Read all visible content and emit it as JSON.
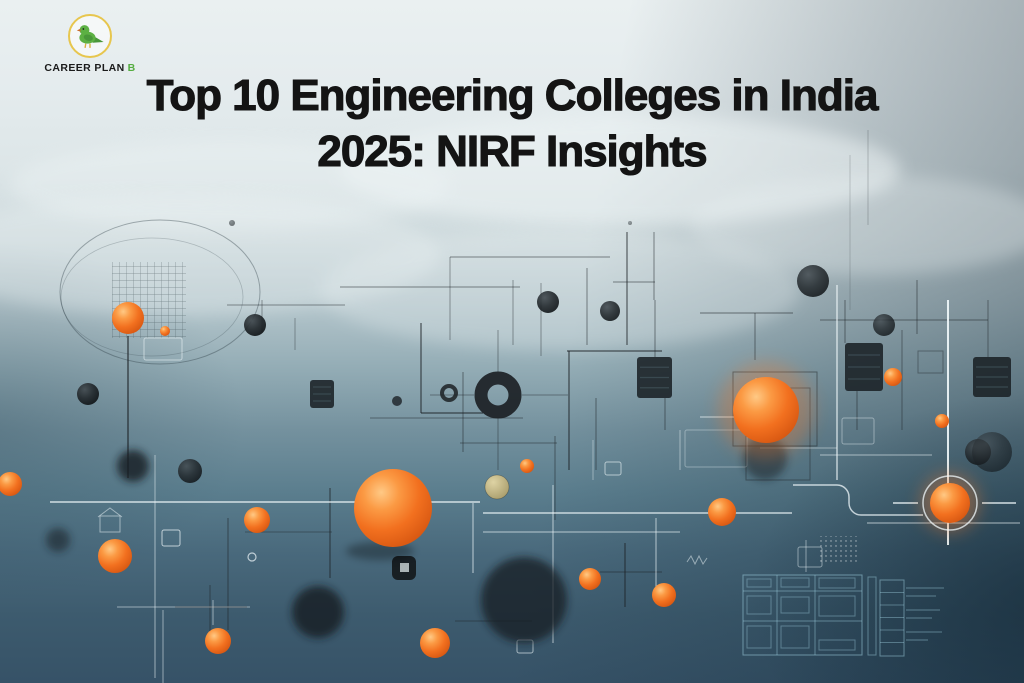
{
  "brand": {
    "name_primary": "CAREER PLAN",
    "name_accent": "B",
    "icon": "bird-icon",
    "colors": {
      "ring": "#e7c64e",
      "bird_body": "#5cb043",
      "bird_dark": "#49973a",
      "beak": "#c96a2a",
      "legs": "#d9ae3e",
      "accent_text": "#55ad41",
      "primary_text": "#1b1b1b"
    }
  },
  "title": {
    "line1": "Top 10 Engineering Colleges in India",
    "line2": "2025: NIRF Insights",
    "color": "#141414"
  },
  "background": {
    "theme": "abstract-circuit-board-artwork-with-orange-spheres",
    "palette": {
      "top": "#eaf0f1",
      "mid": "#8ba6b0",
      "bottom": "#365267",
      "bottom_right": "#2c4a5c",
      "orange": "#f47a2a",
      "orange_light": "#ffc985",
      "orange_deep": "#d85812",
      "dark_ink": "#1c2125",
      "white_line": "#f2fafc",
      "khaki": "#c9bd8a",
      "blueprint": "#9fd0e0"
    }
  }
}
